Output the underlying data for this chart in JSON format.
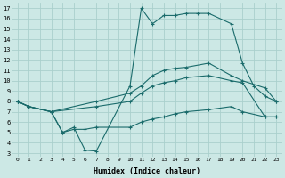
{
  "xlabel": "Humidex (Indice chaleur)",
  "bg_color": "#cce8e5",
  "grid_color": "#aad0cc",
  "line_color": "#1a6b6b",
  "xlim": [
    -0.5,
    23.5
  ],
  "ylim": [
    2.7,
    17.5
  ],
  "xticks": [
    0,
    1,
    2,
    3,
    4,
    5,
    6,
    7,
    8,
    9,
    10,
    11,
    12,
    13,
    14,
    15,
    16,
    17,
    18,
    19,
    20,
    21,
    22,
    23
  ],
  "yticks": [
    3,
    4,
    5,
    6,
    7,
    8,
    9,
    10,
    11,
    12,
    13,
    14,
    15,
    16,
    17
  ],
  "series": [
    {
      "x": [
        0,
        1,
        3,
        4,
        5,
        6,
        7,
        10,
        11,
        12,
        13,
        14,
        15,
        16,
        17,
        19,
        20,
        21,
        22,
        23
      ],
      "y": [
        8,
        7.5,
        7.0,
        5.0,
        5.5,
        3.3,
        3.2,
        9.5,
        17.0,
        15.5,
        16.3,
        16.3,
        16.5,
        16.5,
        16.5,
        15.5,
        11.7,
        9.5,
        8.5,
        8.0
      ]
    },
    {
      "x": [
        0,
        1,
        3,
        7,
        10,
        11,
        12,
        13,
        14,
        15,
        17,
        19,
        20,
        22,
        23
      ],
      "y": [
        8,
        7.5,
        7.0,
        8.0,
        8.8,
        9.5,
        10.5,
        11.0,
        11.2,
        11.3,
        11.7,
        10.5,
        10.0,
        9.3,
        8.0
      ]
    },
    {
      "x": [
        0,
        1,
        3,
        7,
        10,
        11,
        12,
        13,
        14,
        15,
        17,
        19,
        20,
        22,
        23
      ],
      "y": [
        8,
        7.5,
        7.0,
        7.5,
        8.0,
        8.8,
        9.5,
        9.8,
        10.0,
        10.3,
        10.5,
        10.0,
        9.8,
        6.5,
        6.5
      ]
    },
    {
      "x": [
        0,
        1,
        3,
        4,
        5,
        6,
        7,
        10,
        11,
        12,
        13,
        14,
        15,
        17,
        19,
        20,
        22,
        23
      ],
      "y": [
        8,
        7.5,
        7.0,
        5.0,
        5.3,
        5.3,
        5.5,
        5.5,
        6.0,
        6.3,
        6.5,
        6.8,
        7.0,
        7.2,
        7.5,
        7.0,
        6.5,
        6.5
      ]
    }
  ]
}
